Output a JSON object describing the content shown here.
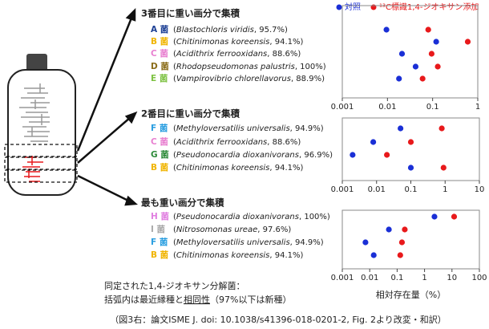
{
  "chart_data": [
    {
      "type": "scatter",
      "title": "3番目に重い画分で集積",
      "tags": [
        "A 菌",
        "B 菌",
        "C 菌",
        "D 菌",
        "E 菌"
      ],
      "tag_colors": [
        "#1c3f94",
        "#f0b400",
        "#e87fd0",
        "#8b6d1a",
        "#7dc242"
      ],
      "categories": [
        "(Blastochloris viridis, 95.7%)",
        "(Chitinimonas koreensis, 94.1%)",
        "(Acidithrix ferrooxidans, 88.6%)",
        "(Rhodopseudomonas palustris, 100%)",
        "(Vampirovibrio chlorellavorus, 88.9%)"
      ],
      "series": [
        {
          "name": "対照",
          "color": "#1a2fd6",
          "values": [
            0.0095,
            0.12,
            0.021,
            0.042,
            0.018
          ]
        },
        {
          "name": "¹³C標識1,4-ジオキサン添加",
          "color": "#e8191b",
          "values": [
            0.08,
            0.6,
            0.095,
            0.13,
            0.06
          ]
        }
      ],
      "log_x": true,
      "xlim": [
        0.001,
        1
      ],
      "xticks": [
        0.001,
        0.01,
        0.1,
        1
      ]
    },
    {
      "type": "scatter",
      "title": "2番目に重い画分で集積",
      "tags": [
        "F 菌",
        "C 菌",
        "G 菌",
        "B 菌"
      ],
      "tag_colors": [
        "#2a9ee0",
        "#e87fd0",
        "#2e8b3a",
        "#f0b400"
      ],
      "categories": [
        "(Methyloversatilis universalis, 94.9%)",
        "(Acidithrix ferrooxidans, 88.6%)",
        "(Pseudonocardia dioxanivorans, 96.9%)",
        "(Chitinimonas koreensis, 94.1%)"
      ],
      "series": [
        {
          "color": "#1a2fd6",
          "values": [
            0.05,
            0.008,
            0.002,
            0.1
          ]
        },
        {
          "color": "#e8191b",
          "values": [
            0.8,
            0.1,
            0.02,
            0.9
          ]
        }
      ],
      "log_x": true,
      "xlim": [
        0.001,
        10
      ],
      "xticks": [
        0.001,
        0.01,
        0.1,
        1,
        10
      ]
    },
    {
      "type": "scatter",
      "title": "最も重い画分で集積",
      "tags": [
        "H 菌",
        "I 菌",
        "F 菌",
        "B 菌"
      ],
      "tag_colors": [
        "#e07fe0",
        "#aaaaaa",
        "#2a9ee0",
        "#f0b400"
      ],
      "categories": [
        "(Pseudonocardia dioxanivorans, 100%)",
        "(Nitrosomonas ureae, 97.6%)",
        "(Methyloversatilis universalis, 94.9%)",
        "(Chitinimonas koreensis, 94.1%)"
      ],
      "series": [
        {
          "color": "#1a2fd6",
          "values": [
            2.3,
            0.05,
            0.007,
            0.014
          ]
        },
        {
          "color": "#e8191b",
          "values": [
            12,
            0.19,
            0.15,
            0.13
          ]
        }
      ],
      "log_x": true,
      "xlim": [
        0.001,
        100
      ],
      "xticks": [
        0.001,
        0.01,
        0.1,
        1,
        10,
        100
      ],
      "xlabel": "相対存在量（%）"
    }
  ],
  "notes": [
    "同定された1,4-ジオキサン分解菌：",
    "括弧内は最近縁種と",
    "相同性",
    "（97%以下は新種）"
  ],
  "caption": "（図3右：論文ISME J. doi: 10.1038/s41396-018-0201-2, Fig. 2より改変・和訳）"
}
